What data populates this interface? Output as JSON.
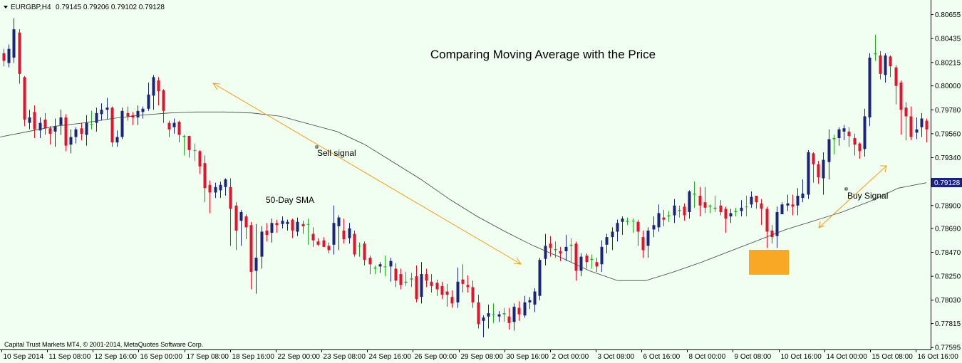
{
  "header": {
    "symbol": "EURGBP,H4",
    "ohlc": "0.79145 0.79206 0.79102 0.79128"
  },
  "copyright": "Capital Trust Markets MT4, © 2001-2014, MetaQuotes Software Corp.",
  "colors": {
    "background": "#f0fff0",
    "bull_candle": "#1a237e",
    "bear_candle": "#e8112d",
    "doji": "#22aa22",
    "sma_line": "#404040",
    "arrow": "#f39c12",
    "highlight_box": "#f9a825",
    "current_price_bg": "#1a237e"
  },
  "chart_data": {
    "type": "candlestick",
    "title": "Comparing Moving Average with the Price",
    "ylim": [
      0.7759,
      0.8075
    ],
    "y_ticks": [
      "0.80655",
      "0.80435",
      "0.80215",
      "0.80000",
      "0.79780",
      "0.79560",
      "0.79340",
      "0.79128",
      "0.78900",
      "0.78690",
      "0.78470",
      "0.78250",
      "0.78030",
      "0.77815",
      "0.77595"
    ],
    "current_price": "0.79128",
    "x_ticks": [
      "10 Sep 2014",
      "11 Sep 08:00",
      "12 Sep 16:00",
      "16 Sep 00:00",
      "17 Sep 08:00",
      "18 Sep 16:00",
      "22 Sep 00:00",
      "23 Sep 08:00",
      "24 Sep 16:00",
      "26 Sep 00:00",
      "29 Sep 08:00",
      "30 Sep 16:00",
      "2 Oct 00:00",
      "3 Oct 08:00",
      "6 Oct 16:00",
      "8 Oct 00:00",
      "9 Oct 08:00",
      "10 Oct 16:00",
      "14 Oct 00:00",
      "15 Oct 08:00",
      "16 Oct 16:00"
    ],
    "sma": {
      "name": "50-Day SMA",
      "values": [
        0.7953,
        0.7958,
        0.7963,
        0.7966,
        0.797,
        0.7973,
        0.7975,
        0.7976,
        0.7976,
        0.7975,
        0.7972,
        0.7965,
        0.7958,
        0.7946,
        0.793,
        0.7914,
        0.7896,
        0.788,
        0.7866,
        0.7853,
        0.7842,
        0.783,
        0.7821,
        0.7821,
        0.7829,
        0.7838,
        0.7848,
        0.7858,
        0.7868,
        0.7876,
        0.7884,
        0.7894,
        0.7906,
        0.7911
      ]
    },
    "candles": [
      [
        0.803,
        0.8023,
        0.8034,
        0.8018
      ],
      [
        0.8021,
        0.8034,
        0.8038,
        0.8017
      ],
      [
        0.8026,
        0.8052,
        0.8062,
        0.8021
      ],
      [
        0.8049,
        0.8011,
        0.8052,
        0.8002
      ],
      [
        0.8008,
        0.7969,
        0.8009,
        0.7963
      ],
      [
        0.7966,
        0.7971,
        0.7978,
        0.796
      ],
      [
        0.7976,
        0.796,
        0.7982,
        0.7952
      ],
      [
        0.7959,
        0.7966,
        0.7971,
        0.7952
      ],
      [
        0.7969,
        0.7961,
        0.7975,
        0.7955
      ],
      [
        0.7961,
        0.7956,
        0.7963,
        0.7946
      ],
      [
        0.7958,
        0.7963,
        0.797,
        0.7944
      ],
      [
        0.7964,
        0.7971,
        0.7978,
        0.7955
      ],
      [
        0.7971,
        0.7945,
        0.7974,
        0.794
      ],
      [
        0.7946,
        0.7953,
        0.796,
        0.7938
      ],
      [
        0.7953,
        0.796,
        0.7962,
        0.7947
      ],
      [
        0.7961,
        0.7956,
        0.7966,
        0.795
      ],
      [
        0.7955,
        0.7966,
        0.7973,
        0.7945
      ],
      [
        0.7965,
        0.7965,
        0.7977,
        0.796
      ],
      [
        0.7966,
        0.7975,
        0.798,
        0.7958
      ],
      [
        0.7974,
        0.7978,
        0.7984,
        0.7968
      ],
      [
        0.7978,
        0.798,
        0.7989,
        0.7969
      ],
      [
        0.798,
        0.7948,
        0.7981,
        0.7944
      ],
      [
        0.7948,
        0.7953,
        0.7959,
        0.7944
      ],
      [
        0.7953,
        0.7977,
        0.798,
        0.7951
      ],
      [
        0.7975,
        0.7972,
        0.7981,
        0.7968
      ],
      [
        0.7973,
        0.7971,
        0.7976,
        0.7964
      ],
      [
        0.7971,
        0.7977,
        0.7982,
        0.7964
      ],
      [
        0.7976,
        0.7979,
        0.7981,
        0.797
      ],
      [
        0.7979,
        0.7992,
        0.8003,
        0.7977
      ],
      [
        0.7991,
        0.8008,
        0.801,
        0.7978
      ],
      [
        0.8005,
        0.7995,
        0.8008,
        0.7982
      ],
      [
        0.7996,
        0.7977,
        0.7997,
        0.7966
      ],
      [
        0.7966,
        0.796,
        0.7968,
        0.7953
      ],
      [
        0.7962,
        0.7966,
        0.797,
        0.7956
      ],
      [
        0.7967,
        0.7955,
        0.7968,
        0.7948
      ],
      [
        0.7953,
        0.7954,
        0.7955,
        0.7936
      ],
      [
        0.7954,
        0.7941,
        0.7954,
        0.7934
      ],
      [
        0.7941,
        0.7941,
        0.7947,
        0.7931
      ],
      [
        0.794,
        0.7926,
        0.7941,
        0.7919
      ],
      [
        0.7929,
        0.7906,
        0.7936,
        0.7893
      ],
      [
        0.7909,
        0.7902,
        0.7913,
        0.7883
      ],
      [
        0.7902,
        0.7907,
        0.7911,
        0.7897
      ],
      [
        0.7904,
        0.7909,
        0.7912,
        0.7897
      ],
      [
        0.7907,
        0.7914,
        0.7915,
        0.7899
      ],
      [
        0.7907,
        0.7887,
        0.7915,
        0.7853
      ],
      [
        0.789,
        0.7867,
        0.7893,
        0.7849
      ],
      [
        0.7876,
        0.7884,
        0.7886,
        0.7853
      ],
      [
        0.788,
        0.787,
        0.7882,
        0.7859
      ],
      [
        0.7872,
        0.7829,
        0.7875,
        0.7813
      ],
      [
        0.783,
        0.7842,
        0.7873,
        0.7809
      ],
      [
        0.7843,
        0.7866,
        0.7871,
        0.7832
      ],
      [
        0.7867,
        0.7863,
        0.7874,
        0.7857
      ],
      [
        0.7865,
        0.7874,
        0.7878,
        0.7856
      ],
      [
        0.7874,
        0.7872,
        0.7877,
        0.7865
      ],
      [
        0.7873,
        0.7876,
        0.788,
        0.7869
      ],
      [
        0.7873,
        0.7875,
        0.7877,
        0.7867
      ],
      [
        0.7877,
        0.7867,
        0.7878,
        0.786
      ],
      [
        0.7866,
        0.7875,
        0.7879,
        0.7862
      ],
      [
        0.7873,
        0.7871,
        0.7876,
        0.7864
      ],
      [
        0.7873,
        0.7873,
        0.7878,
        0.7854
      ],
      [
        0.7864,
        0.7858,
        0.787,
        0.7852
      ],
      [
        0.7857,
        0.7854,
        0.786,
        0.7853
      ],
      [
        0.7858,
        0.7852,
        0.7861,
        0.7852
      ],
      [
        0.7853,
        0.7849,
        0.7856,
        0.7846
      ],
      [
        0.7854,
        0.7874,
        0.789,
        0.7845
      ],
      [
        0.7871,
        0.7879,
        0.7881,
        0.7849
      ],
      [
        0.7867,
        0.7859,
        0.7878,
        0.7855
      ],
      [
        0.786,
        0.7869,
        0.7874,
        0.7855
      ],
      [
        0.7864,
        0.7845,
        0.7867,
        0.7843
      ],
      [
        0.7853,
        0.7853,
        0.7856,
        0.7843
      ],
      [
        0.7855,
        0.784,
        0.7857,
        0.7835
      ],
      [
        0.7842,
        0.7836,
        0.7844,
        0.7827
      ],
      [
        0.7832,
        0.7833,
        0.7835,
        0.7827
      ],
      [
        0.7834,
        0.7836,
        0.7838,
        0.7828
      ],
      [
        0.7834,
        0.7834,
        0.7844,
        0.7825
      ],
      [
        0.7834,
        0.7839,
        0.7842,
        0.782
      ],
      [
        0.7832,
        0.7821,
        0.7837,
        0.7815
      ],
      [
        0.7827,
        0.7817,
        0.7832,
        0.7813
      ],
      [
        0.7819,
        0.782,
        0.7829,
        0.7816
      ],
      [
        0.7823,
        0.7822,
        0.7828,
        0.7815
      ],
      [
        0.7825,
        0.7804,
        0.7835,
        0.7801
      ],
      [
        0.7806,
        0.7827,
        0.7838,
        0.78
      ],
      [
        0.7827,
        0.7821,
        0.7832,
        0.7815
      ],
      [
        0.782,
        0.7816,
        0.7827,
        0.781
      ],
      [
        0.7819,
        0.7813,
        0.7822,
        0.7807
      ],
      [
        0.7816,
        0.7808,
        0.782,
        0.7804
      ],
      [
        0.7811,
        0.7808,
        0.7818,
        0.7797
      ],
      [
        0.7806,
        0.78,
        0.7812,
        0.7796
      ],
      [
        0.7801,
        0.782,
        0.7833,
        0.7796
      ],
      [
        0.7822,
        0.7818,
        0.7836,
        0.781
      ],
      [
        0.7817,
        0.7815,
        0.7826,
        0.781
      ],
      [
        0.7815,
        0.7801,
        0.7821,
        0.7796
      ],
      [
        0.7801,
        0.7781,
        0.7808,
        0.7777
      ],
      [
        0.7784,
        0.7787,
        0.7789,
        0.7769
      ],
      [
        0.7788,
        0.7791,
        0.7799,
        0.7777
      ],
      [
        0.779,
        0.779,
        0.78,
        0.7782
      ],
      [
        0.7788,
        0.779,
        0.7793,
        0.7783
      ],
      [
        0.7791,
        0.779,
        0.7796,
        0.7783
      ],
      [
        0.7788,
        0.7782,
        0.7796,
        0.7776
      ],
      [
        0.7783,
        0.7797,
        0.78,
        0.7775
      ],
      [
        0.7796,
        0.779,
        0.7802,
        0.7784
      ],
      [
        0.7789,
        0.7801,
        0.7807,
        0.7787
      ],
      [
        0.7801,
        0.7803,
        0.7806,
        0.7795
      ],
      [
        0.7799,
        0.7811,
        0.7814,
        0.7792
      ],
      [
        0.7807,
        0.784,
        0.7842,
        0.7803
      ],
      [
        0.7841,
        0.7853,
        0.7864,
        0.7835
      ],
      [
        0.7855,
        0.7851,
        0.7862,
        0.7843
      ],
      [
        0.7849,
        0.785,
        0.7857,
        0.7842
      ],
      [
        0.7848,
        0.7846,
        0.7852,
        0.7839
      ],
      [
        0.7848,
        0.7852,
        0.7863,
        0.7839
      ],
      [
        0.7853,
        0.7854,
        0.786,
        0.7838
      ],
      [
        0.7855,
        0.783,
        0.7857,
        0.7821
      ],
      [
        0.783,
        0.7843,
        0.7846,
        0.7825
      ],
      [
        0.7844,
        0.7838,
        0.7846,
        0.7832
      ],
      [
        0.784,
        0.7841,
        0.7845,
        0.7832
      ],
      [
        0.7838,
        0.7834,
        0.7842,
        0.7829
      ],
      [
        0.7836,
        0.7852,
        0.7858,
        0.7829
      ],
      [
        0.7854,
        0.7861,
        0.7864,
        0.7846
      ],
      [
        0.7861,
        0.7866,
        0.787,
        0.7849
      ],
      [
        0.7866,
        0.7874,
        0.7877,
        0.7857
      ],
      [
        0.7875,
        0.7878,
        0.788,
        0.7863
      ],
      [
        0.7876,
        0.7875,
        0.7879,
        0.7872
      ],
      [
        0.7876,
        0.7876,
        0.7878,
        0.7865
      ],
      [
        0.7875,
        0.7866,
        0.7877,
        0.7853
      ],
      [
        0.7861,
        0.7849,
        0.7867,
        0.7842
      ],
      [
        0.7853,
        0.7867,
        0.787,
        0.7842
      ],
      [
        0.7868,
        0.7872,
        0.788,
        0.7861
      ],
      [
        0.787,
        0.7883,
        0.7891,
        0.7866
      ],
      [
        0.7879,
        0.7877,
        0.7886,
        0.7871
      ],
      [
        0.788,
        0.7881,
        0.7885,
        0.7875
      ],
      [
        0.7881,
        0.789,
        0.7896,
        0.7874
      ],
      [
        0.7885,
        0.7886,
        0.789,
        0.7879
      ],
      [
        0.7889,
        0.7881,
        0.7892,
        0.7876
      ],
      [
        0.7884,
        0.7903,
        0.7904,
        0.7878
      ],
      [
        0.7901,
        0.79,
        0.7912,
        0.7888
      ],
      [
        0.7899,
        0.789,
        0.7907,
        0.788
      ],
      [
        0.7893,
        0.7888,
        0.7907,
        0.7883
      ],
      [
        0.789,
        0.7889,
        0.7891,
        0.7883
      ],
      [
        0.7888,
        0.7887,
        0.7899,
        0.7884
      ],
      [
        0.789,
        0.7884,
        0.7895,
        0.7881
      ],
      [
        0.7887,
        0.7878,
        0.7889,
        0.7865
      ],
      [
        0.788,
        0.7883,
        0.7887,
        0.7874
      ],
      [
        0.7884,
        0.7885,
        0.7888,
        0.788
      ],
      [
        0.7885,
        0.7888,
        0.7895,
        0.788
      ],
      [
        0.7889,
        0.7889,
        0.7899,
        0.788
      ],
      [
        0.7891,
        0.7898,
        0.7903,
        0.7888
      ],
      [
        0.7899,
        0.7893,
        0.7899,
        0.7887
      ],
      [
        0.7892,
        0.7887,
        0.7896,
        0.7872
      ],
      [
        0.7887,
        0.7866,
        0.7889,
        0.7851
      ],
      [
        0.7867,
        0.7861,
        0.7872,
        0.7855
      ],
      [
        0.7862,
        0.7884,
        0.7889,
        0.7851
      ],
      [
        0.7882,
        0.7891,
        0.7893,
        0.7882
      ],
      [
        0.789,
        0.7892,
        0.79,
        0.7885
      ],
      [
        0.7891,
        0.7889,
        0.79,
        0.7881
      ],
      [
        0.789,
        0.7899,
        0.7906,
        0.7881
      ],
      [
        0.7897,
        0.7901,
        0.7914,
        0.7893
      ],
      [
        0.79,
        0.7939,
        0.7941,
        0.7896
      ],
      [
        0.7938,
        0.7928,
        0.7939,
        0.7911
      ],
      [
        0.7928,
        0.7916,
        0.7931,
        0.791
      ],
      [
        0.7915,
        0.7932,
        0.7939,
        0.79
      ],
      [
        0.793,
        0.7951,
        0.796,
        0.7914
      ],
      [
        0.7951,
        0.7952,
        0.7955,
        0.7937
      ],
      [
        0.7952,
        0.796,
        0.7962,
        0.7945
      ],
      [
        0.7958,
        0.7961,
        0.7964,
        0.795
      ],
      [
        0.7958,
        0.7954,
        0.7962,
        0.7944
      ],
      [
        0.7952,
        0.7946,
        0.7956,
        0.7936
      ],
      [
        0.7947,
        0.794,
        0.7948,
        0.7933
      ],
      [
        0.7942,
        0.7972,
        0.7979,
        0.7935
      ],
      [
        0.7971,
        0.8026,
        0.803,
        0.7963
      ],
      [
        0.8029,
        0.803,
        0.8047,
        0.8023
      ],
      [
        0.8028,
        0.8011,
        0.8032,
        0.8006
      ],
      [
        0.801,
        0.8028,
        0.803,
        0.8003
      ],
      [
        0.8027,
        0.8018,
        0.8028,
        0.8008
      ],
      [
        0.8017,
        0.8,
        0.8019,
        0.7983
      ],
      [
        0.8003,
        0.7978,
        0.8005,
        0.7955
      ],
      [
        0.798,
        0.7972,
        0.7985,
        0.795
      ],
      [
        0.7972,
        0.7953,
        0.7981,
        0.795
      ],
      [
        0.7957,
        0.796,
        0.7971,
        0.7951
      ],
      [
        0.7962,
        0.797,
        0.7975,
        0.7953
      ],
      [
        0.7968,
        0.796,
        0.797,
        0.7948
      ]
    ],
    "annotations": [
      {
        "text": "Sell signal"
      },
      {
        "text": "50-Day SMA"
      },
      {
        "text": "Buy Signal"
      }
    ]
  }
}
